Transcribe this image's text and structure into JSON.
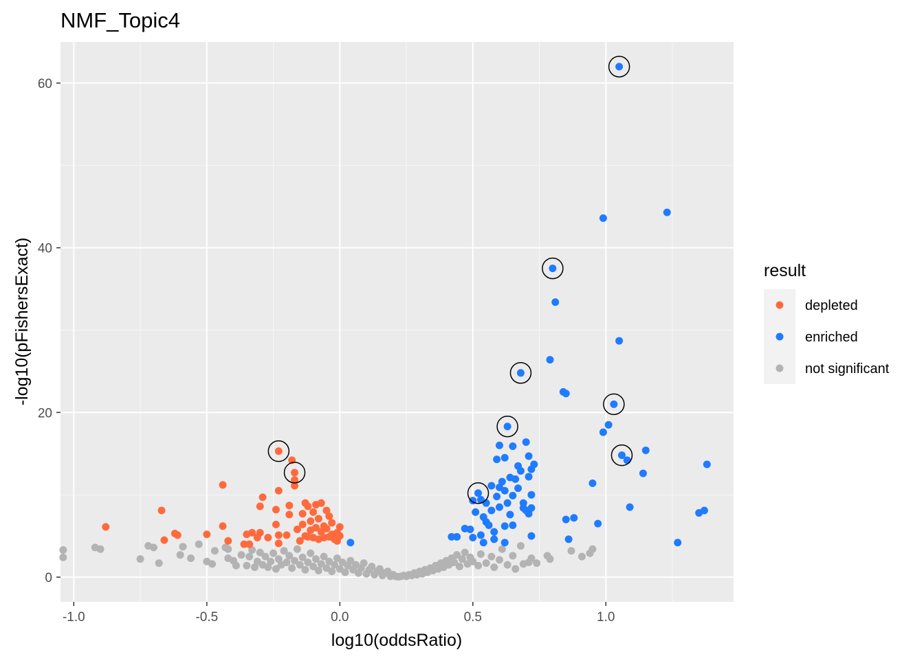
{
  "chart_data": {
    "type": "scatter",
    "title": "NMF_Topic4",
    "xlabel": "log10(oddsRatio)",
    "ylabel": "-log10(pFishersExact)",
    "xlim": [
      -1.05,
      1.48
    ],
    "ylim": [
      -3,
      65
    ],
    "x_ticks": [
      -1.0,
      -0.5,
      0.0,
      0.5,
      1.0
    ],
    "x_tick_labels": [
      "-1.0",
      "-0.5",
      "0.0",
      "0.5",
      "1.0"
    ],
    "y_ticks": [
      0,
      20,
      40,
      60
    ],
    "y_tick_labels": [
      "0",
      "20",
      "40",
      "60"
    ],
    "grid": true,
    "legend": {
      "title": "result",
      "position": "right",
      "entries": [
        {
          "label": "depleted",
          "color": "#FF6A3D"
        },
        {
          "label": "enriched",
          "color": "#1F7BFF"
        },
        {
          "label": "not significant",
          "color": "#B3B3B3"
        }
      ]
    },
    "series": [
      {
        "name": "not significant",
        "color": "#B3B3B3",
        "points": [
          [
            -1.04,
            3.3
          ],
          [
            -1.04,
            2.4
          ],
          [
            -0.92,
            3.6
          ],
          [
            -0.9,
            3.4
          ],
          [
            -0.75,
            2.2
          ],
          [
            -0.72,
            3.8
          ],
          [
            -0.7,
            3.6
          ],
          [
            -0.68,
            1.7
          ],
          [
            -0.6,
            2.7
          ],
          [
            -0.59,
            3.7
          ],
          [
            -0.56,
            2.3
          ],
          [
            -0.53,
            4.0
          ],
          [
            -0.5,
            1.9
          ],
          [
            -0.48,
            1.6
          ],
          [
            -0.47,
            3.2
          ],
          [
            -0.43,
            3.6
          ],
          [
            -0.42,
            3.4
          ],
          [
            -0.42,
            2.3
          ],
          [
            -0.4,
            2.0
          ],
          [
            -0.39,
            1.4
          ],
          [
            -0.37,
            2.7
          ],
          [
            -0.35,
            1.4
          ],
          [
            -0.34,
            2.5
          ],
          [
            -0.33,
            3.3
          ],
          [
            -0.32,
            1.2
          ],
          [
            -0.31,
            1.9
          ],
          [
            -0.3,
            3.0
          ],
          [
            -0.29,
            1.5
          ],
          [
            -0.28,
            2.5
          ],
          [
            -0.27,
            1.2
          ],
          [
            -0.26,
            1.9
          ],
          [
            -0.25,
            2.9
          ],
          [
            -0.24,
            1.0
          ],
          [
            -0.23,
            2.2
          ],
          [
            -0.22,
            1.5
          ],
          [
            -0.21,
            3.2
          ],
          [
            -0.2,
            1.8
          ],
          [
            -0.19,
            2.6
          ],
          [
            -0.18,
            1.1
          ],
          [
            -0.17,
            2.0
          ],
          [
            -0.16,
            3.4
          ],
          [
            -0.15,
            1.5
          ],
          [
            -0.14,
            2.4
          ],
          [
            -0.13,
            0.9
          ],
          [
            -0.12,
            1.8
          ],
          [
            -0.11,
            2.9
          ],
          [
            -0.1,
            1.3
          ],
          [
            -0.09,
            2.2
          ],
          [
            -0.08,
            0.8
          ],
          [
            -0.07,
            1.6
          ],
          [
            -0.06,
            2.5
          ],
          [
            -0.05,
            1.1
          ],
          [
            -0.04,
            1.9
          ],
          [
            -0.03,
            0.7
          ],
          [
            -0.02,
            1.5
          ],
          [
            -0.01,
            2.3
          ],
          [
            0.0,
            1.0
          ],
          [
            0.01,
            1.8
          ],
          [
            0.02,
            0.6
          ],
          [
            0.03,
            1.4
          ],
          [
            0.04,
            2.0
          ],
          [
            0.05,
            0.9
          ],
          [
            0.06,
            1.5
          ],
          [
            0.07,
            0.5
          ],
          [
            0.08,
            1.1
          ],
          [
            0.09,
            1.7
          ],
          [
            0.1,
            0.4
          ],
          [
            0.11,
            0.9
          ],
          [
            0.12,
            1.3
          ],
          [
            0.13,
            0.3
          ],
          [
            0.14,
            0.7
          ],
          [
            0.15,
            1.0
          ],
          [
            0.16,
            0.2
          ],
          [
            0.17,
            0.5
          ],
          [
            0.18,
            0.7
          ],
          [
            0.19,
            0.1
          ],
          [
            0.2,
            0.3
          ],
          [
            0.21,
            0.1
          ],
          [
            0.22,
            0.05
          ],
          [
            0.23,
            0.1
          ],
          [
            0.24,
            0.2
          ],
          [
            0.25,
            0.1
          ],
          [
            0.26,
            0.3
          ],
          [
            0.27,
            0.2
          ],
          [
            0.28,
            0.5
          ],
          [
            0.29,
            0.3
          ],
          [
            0.3,
            0.7
          ],
          [
            0.31,
            0.4
          ],
          [
            0.32,
            0.9
          ],
          [
            0.33,
            0.6
          ],
          [
            0.34,
            1.1
          ],
          [
            0.35,
            0.8
          ],
          [
            0.36,
            1.4
          ],
          [
            0.37,
            1.0
          ],
          [
            0.38,
            1.7
          ],
          [
            0.39,
            1.2
          ],
          [
            0.4,
            2.0
          ],
          [
            0.41,
            1.5
          ],
          [
            0.42,
            2.3
          ],
          [
            0.43,
            1.8
          ],
          [
            0.44,
            2.7
          ],
          [
            0.45,
            1.3
          ],
          [
            0.46,
            2.2
          ],
          [
            0.47,
            3.0
          ],
          [
            0.48,
            1.6
          ],
          [
            0.49,
            2.4
          ],
          [
            0.5,
            1.9
          ],
          [
            0.52,
            1.4
          ],
          [
            0.53,
            2.8
          ],
          [
            0.55,
            1.7
          ],
          [
            0.57,
            2.5
          ],
          [
            0.58,
            1.2
          ],
          [
            0.6,
            2.1
          ],
          [
            0.61,
            3.4
          ],
          [
            0.63,
            1.5
          ],
          [
            0.65,
            2.6
          ],
          [
            0.66,
            1.0
          ],
          [
            0.68,
            3.8
          ],
          [
            0.69,
            1.6
          ],
          [
            0.71,
            1.8
          ],
          [
            0.72,
            2.3
          ],
          [
            0.74,
            1.7
          ],
          [
            0.78,
            2.6
          ],
          [
            0.79,
            2.2
          ],
          [
            0.87,
            3.2
          ],
          [
            0.91,
            2.5
          ],
          [
            0.94,
            2.9
          ],
          [
            0.95,
            3.4
          ]
        ]
      },
      {
        "name": "depleted",
        "color": "#FF6A3D",
        "points": [
          [
            -0.88,
            6.1
          ],
          [
            -0.67,
            8.1
          ],
          [
            -0.66,
            4.5
          ],
          [
            -0.62,
            5.3
          ],
          [
            -0.61,
            5.1
          ],
          [
            -0.5,
            5.2
          ],
          [
            -0.44,
            11.2
          ],
          [
            -0.44,
            6.2
          ],
          [
            -0.42,
            4.4
          ],
          [
            -0.36,
            4.0
          ],
          [
            -0.35,
            5.2
          ],
          [
            -0.34,
            4.0
          ],
          [
            -0.33,
            5.4
          ],
          [
            -0.31,
            4.8
          ],
          [
            -0.3,
            5.4
          ],
          [
            -0.3,
            8.6
          ],
          [
            -0.29,
            9.7
          ],
          [
            -0.27,
            4.8
          ],
          [
            -0.24,
            8.2
          ],
          [
            -0.24,
            6.4
          ],
          [
            -0.23,
            5.1
          ],
          [
            -0.23,
            4.1
          ],
          [
            -0.23,
            15.3
          ],
          [
            -0.23,
            10.5
          ],
          [
            -0.2,
            5.1
          ],
          [
            -0.19,
            7.6
          ],
          [
            -0.19,
            8.7
          ],
          [
            -0.18,
            14.2
          ],
          [
            -0.17,
            12.7
          ],
          [
            -0.17,
            11.1
          ],
          [
            -0.17,
            11.8
          ],
          [
            -0.16,
            5.8
          ],
          [
            -0.15,
            4.4
          ],
          [
            -0.14,
            6.4
          ],
          [
            -0.14,
            7.7
          ],
          [
            -0.13,
            9.0
          ],
          [
            -0.13,
            5.0
          ],
          [
            -0.12,
            8.6
          ],
          [
            -0.12,
            4.9
          ],
          [
            -0.11,
            6.8
          ],
          [
            -0.11,
            5.7
          ],
          [
            -0.1,
            4.8
          ],
          [
            -0.1,
            7.9
          ],
          [
            -0.09,
            8.8
          ],
          [
            -0.09,
            6.0
          ],
          [
            -0.08,
            4.6
          ],
          [
            -0.08,
            7.1
          ],
          [
            -0.07,
            5.5
          ],
          [
            -0.07,
            9.0
          ],
          [
            -0.06,
            6.2
          ],
          [
            -0.06,
            4.8
          ],
          [
            -0.05,
            8.1
          ],
          [
            -0.05,
            5.9
          ],
          [
            -0.04,
            4.9
          ],
          [
            -0.04,
            7.4
          ],
          [
            -0.03,
            6.6
          ],
          [
            -0.03,
            5.2
          ],
          [
            -0.02,
            4.6
          ],
          [
            -0.01,
            5.4
          ],
          [
            -0.01,
            4.4
          ],
          [
            0.0,
            6.1
          ],
          [
            0.0,
            5.0
          ]
        ]
      },
      {
        "name": "enriched",
        "color": "#1F7BFF",
        "points": [
          [
            0.04,
            4.2
          ],
          [
            0.42,
            4.9
          ],
          [
            0.44,
            4.9
          ],
          [
            0.47,
            5.9
          ],
          [
            0.49,
            5.8
          ],
          [
            0.5,
            4.8
          ],
          [
            0.5,
            9.3
          ],
          [
            0.51,
            7.9
          ],
          [
            0.52,
            10.2
          ],
          [
            0.53,
            9.4
          ],
          [
            0.53,
            5.1
          ],
          [
            0.54,
            4.2
          ],
          [
            0.54,
            7.3
          ],
          [
            0.55,
            9.0
          ],
          [
            0.55,
            6.7
          ],
          [
            0.56,
            6.3
          ],
          [
            0.57,
            11.1
          ],
          [
            0.57,
            8.1
          ],
          [
            0.58,
            5.5
          ],
          [
            0.58,
            4.6
          ],
          [
            0.59,
            9.8
          ],
          [
            0.59,
            14.3
          ],
          [
            0.6,
            16.0
          ],
          [
            0.6,
            10.9
          ],
          [
            0.6,
            8.5
          ],
          [
            0.61,
            11.6
          ],
          [
            0.62,
            14.5
          ],
          [
            0.62,
            10.5
          ],
          [
            0.62,
            6.2
          ],
          [
            0.62,
            4.2
          ],
          [
            0.63,
            9.0
          ],
          [
            0.63,
            18.3
          ],
          [
            0.64,
            12.1
          ],
          [
            0.64,
            7.6
          ],
          [
            0.65,
            15.9
          ],
          [
            0.65,
            9.9
          ],
          [
            0.65,
            6.3
          ],
          [
            0.66,
            11.9
          ],
          [
            0.67,
            13.5
          ],
          [
            0.67,
            10.8
          ],
          [
            0.68,
            12.9
          ],
          [
            0.68,
            24.8
          ],
          [
            0.69,
            9.0
          ],
          [
            0.69,
            8.4
          ],
          [
            0.7,
            8.1
          ],
          [
            0.7,
            16.4
          ],
          [
            0.71,
            14.7
          ],
          [
            0.71,
            12.2
          ],
          [
            0.71,
            7.7
          ],
          [
            0.72,
            8.4
          ],
          [
            0.72,
            5.0
          ],
          [
            0.72,
            13.1
          ],
          [
            0.72,
            10.0
          ],
          [
            0.73,
            13.7
          ],
          [
            0.79,
            26.4
          ],
          [
            0.8,
            37.5
          ],
          [
            0.81,
            33.4
          ],
          [
            0.84,
            22.5
          ],
          [
            0.85,
            22.3
          ],
          [
            0.85,
            7.0
          ],
          [
            0.86,
            4.6
          ],
          [
            0.88,
            7.2
          ],
          [
            0.95,
            11.4
          ],
          [
            0.97,
            6.5
          ],
          [
            0.99,
            43.6
          ],
          [
            0.99,
            17.6
          ],
          [
            1.01,
            18.5
          ],
          [
            1.03,
            21.0
          ],
          [
            1.05,
            28.7
          ],
          [
            1.05,
            62.0
          ],
          [
            1.06,
            14.8
          ],
          [
            1.08,
            14.2
          ],
          [
            1.09,
            8.5
          ],
          [
            1.14,
            12.6
          ],
          [
            1.15,
            15.4
          ],
          [
            1.23,
            44.3
          ],
          [
            1.27,
            4.2
          ],
          [
            1.35,
            7.8
          ],
          [
            1.37,
            8.1
          ],
          [
            1.38,
            13.7
          ]
        ]
      }
    ],
    "circled_points": [
      [
        -0.23,
        15.3
      ],
      [
        -0.17,
        12.7
      ],
      [
        0.52,
        10.2
      ],
      [
        0.63,
        18.3
      ],
      [
        0.68,
        24.8
      ],
      [
        0.8,
        37.5
      ],
      [
        1.03,
        21.0
      ],
      [
        1.05,
        62.0
      ],
      [
        1.06,
        14.8
      ]
    ]
  }
}
